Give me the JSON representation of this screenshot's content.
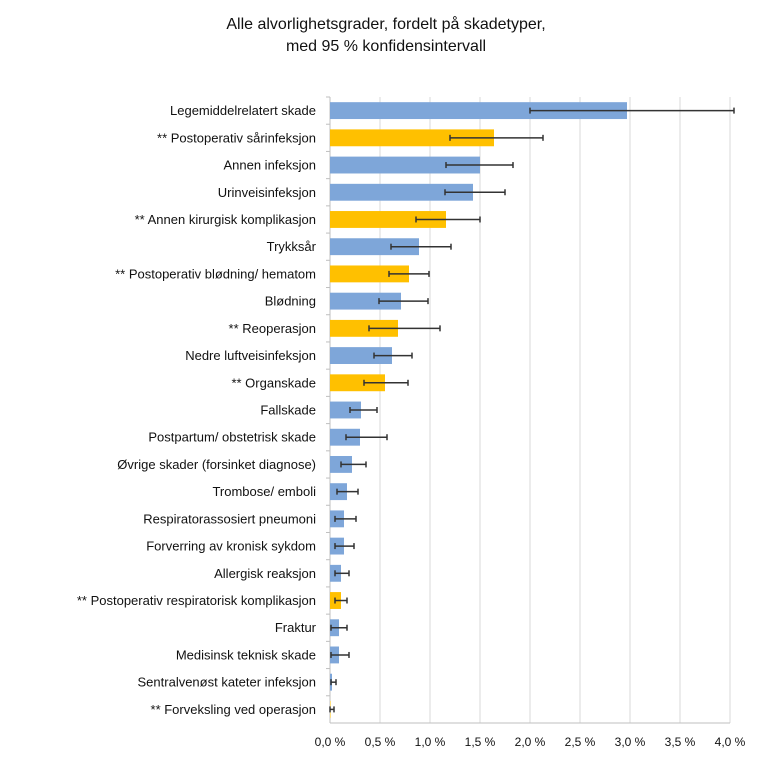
{
  "chart_data": {
    "type": "bar",
    "orientation": "horizontal",
    "title": [
      "Alle alvorlighetsgrader, fordelt på skadetyper,",
      "med 95 % konfidensintervall"
    ],
    "xlim": [
      0,
      4.0
    ],
    "xticks": [
      "0,0 %",
      "0,5 %",
      "1,0 %",
      "1,5 %",
      "2,0 %",
      "2,5 %",
      "3,0 %",
      "3,5 %",
      "4,0 %"
    ],
    "grid": true,
    "colors": {
      "blue": "#7ea6d9",
      "gold": "#ffc000"
    },
    "categories": [
      "Legemiddelrelatert skade",
      "** Postoperativ sårinfeksjon",
      "Annen infeksjon",
      "Urinveisinfeksjon",
      "** Annen kirurgisk komplikasjon",
      "Trykksår",
      "** Postoperativ blødning/ hematom",
      "Blødning",
      "** Reoperasjon",
      "Nedre luftveisinfeksjon",
      "** Organskade",
      "Fallskade",
      "Postpartum/ obstetrisk skade",
      "Øvrige skader (forsinket diagnose)",
      "Trombose/ emboli",
      "Respiratorassosiert pneumoni",
      "Forverring av kronisk sykdom",
      "Allergisk reaksjon",
      "** Postoperativ respiratorisk komplikasjon",
      "Fraktur",
      "Medisinsk teknisk skade",
      "Sentralvenøst kateter infeksjon",
      "** Forveksling ved operasjon"
    ],
    "values": [
      2.97,
      1.64,
      1.5,
      1.43,
      1.16,
      0.89,
      0.79,
      0.71,
      0.68,
      0.62,
      0.55,
      0.31,
      0.3,
      0.22,
      0.17,
      0.14,
      0.14,
      0.11,
      0.11,
      0.09,
      0.09,
      0.02,
      0.005
    ],
    "ci_low": [
      2.0,
      1.2,
      1.16,
      1.15,
      0.86,
      0.61,
      0.59,
      0.49,
      0.39,
      0.44,
      0.34,
      0.2,
      0.16,
      0.11,
      0.07,
      0.05,
      0.05,
      0.05,
      0.05,
      0.01,
      0.01,
      0.01,
      0.0
    ],
    "ci_high": [
      4.04,
      2.13,
      1.83,
      1.75,
      1.5,
      1.21,
      0.99,
      0.98,
      1.1,
      0.82,
      0.78,
      0.47,
      0.57,
      0.36,
      0.28,
      0.26,
      0.24,
      0.19,
      0.17,
      0.17,
      0.19,
      0.06,
      0.04
    ],
    "bar_color": [
      "blue",
      "gold",
      "blue",
      "blue",
      "gold",
      "blue",
      "gold",
      "blue",
      "gold",
      "blue",
      "gold",
      "blue",
      "blue",
      "blue",
      "blue",
      "blue",
      "blue",
      "blue",
      "gold",
      "blue",
      "blue",
      "blue",
      "gold"
    ]
  }
}
